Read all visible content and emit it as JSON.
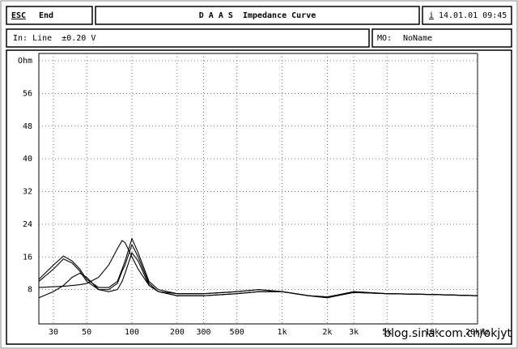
{
  "header": {
    "esc_key": "ESC",
    "esc_label": "End",
    "title": "D A A S  Impedance Curve",
    "info_key": "i",
    "datetime": "14.01.01 09:45",
    "input": "In: Line  ±0.20 V",
    "memory_key": "MO:",
    "memory_name": "NoName"
  },
  "chart_data": {
    "type": "line",
    "log_x": true,
    "grid": true,
    "x": [
      24,
      30,
      35,
      40,
      45,
      50,
      60,
      70,
      80,
      86,
      90,
      100,
      110,
      130,
      150,
      200,
      300,
      500,
      700,
      1000,
      1500,
      2000,
      3000,
      5000,
      10000,
      20000
    ],
    "series": [
      {
        "color": "#000000",
        "values": [
          10.5,
          14,
          16.2,
          15,
          13,
          10.5,
          8.5,
          8.5,
          10,
          13,
          15,
          20.5,
          17,
          10,
          8,
          7,
          7,
          7.5,
          8,
          7.5,
          6.5,
          6,
          7.5,
          7,
          6.8,
          6.5
        ]
      },
      {
        "color": "#000000",
        "values": [
          10,
          13,
          15.5,
          14.5,
          12.5,
          10,
          8,
          8,
          9.5,
          12.5,
          14,
          19,
          16,
          9.5,
          7.5,
          6.5,
          6.5,
          7,
          7.5,
          7.5,
          6.5,
          6.2,
          7.5,
          7,
          6.8,
          6.5
        ]
      },
      {
        "color": "#000000",
        "values": [
          8.5,
          8.7,
          8.8,
          9,
          9.2,
          9.5,
          11,
          14,
          18,
          20,
          19.5,
          16,
          13,
          9,
          7.5,
          7,
          7,
          7.5,
          8,
          7.5,
          6.5,
          6,
          7.3,
          7,
          6.8,
          6.5
        ]
      },
      {
        "color": "#000000",
        "values": [
          6,
          7.5,
          9,
          11,
          12,
          11,
          8,
          7.5,
          8,
          10,
          12,
          17,
          15,
          9,
          7.5,
          6.5,
          6.5,
          7,
          7.5,
          7.5,
          6.5,
          6.2,
          7.3,
          7,
          6.8,
          6.5
        ]
      }
    ],
    "xlim": [
      24,
      20000
    ],
    "xticks": [
      30,
      50,
      100,
      200,
      300,
      500,
      {
        "value": 1000,
        "label": "1k"
      },
      {
        "value": 2000,
        "label": "2k"
      },
      {
        "value": 3000,
        "label": "3k"
      },
      {
        "value": 5000,
        "label": "5k"
      },
      {
        "value": 10000,
        "label": "10k"
      },
      {
        "value": 20000,
        "label": "20kHz"
      }
    ],
    "ylim": [
      0,
      64
    ],
    "yticks": [
      8,
      16,
      24,
      32,
      40,
      48,
      56,
      {
        "value": 64,
        "label": "Ohm"
      }
    ],
    "annotation": "blog.sina.com.cn/okjyt"
  }
}
